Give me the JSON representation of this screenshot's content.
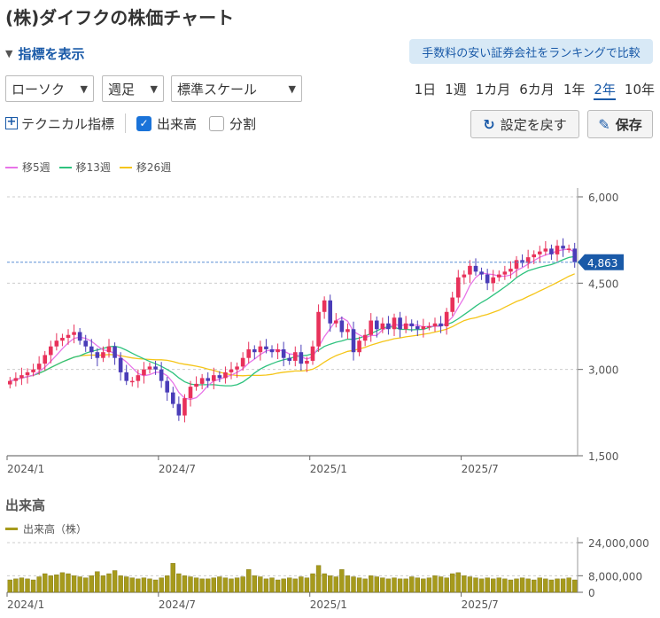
{
  "header": {
    "title": "(株)ダイフクの株価チャート"
  },
  "indicators_toggle": {
    "label": "指標を表示"
  },
  "ranking_button": {
    "label": "手数料の安い証券会社をランキングで比較"
  },
  "selects": {
    "chart_type": "ローソク",
    "interval": "週足",
    "scale": "標準スケール"
  },
  "periods": [
    {
      "label": "1日",
      "active": false
    },
    {
      "label": "1週",
      "active": false
    },
    {
      "label": "1カ月",
      "active": false
    },
    {
      "label": "6カ月",
      "active": false
    },
    {
      "label": "1年",
      "active": false
    },
    {
      "label": "2年",
      "active": true
    },
    {
      "label": "10年",
      "active": false
    }
  ],
  "options": {
    "technical_label": "テクニカル指標",
    "volume_label": "出来高",
    "volume_checked": true,
    "split_label": "分割",
    "split_checked": false
  },
  "buttons": {
    "reset_label": "設定を戻す",
    "save_label": "保存"
  },
  "legend": [
    {
      "name": "移5週",
      "color": "#e873e8"
    },
    {
      "name": "移13週",
      "color": "#2ec27e"
    },
    {
      "name": "移26週",
      "color": "#f5c518"
    }
  ],
  "colors": {
    "up": "#e8315a",
    "down": "#4a3db8",
    "volume": "#a69a1c",
    "current_tag": "#1a5aa8"
  },
  "volume_section": {
    "title": "出来高",
    "legend_label": "出来高（株）"
  },
  "chart_data": {
    "type": "candlestick",
    "current_price_label": "4,863",
    "current_price": 4863,
    "y_ticks": [
      {
        "v": 6000,
        "label": "6,000"
      },
      {
        "v": 4500,
        "label": "4,500"
      },
      {
        "v": 3000,
        "label": "3,000"
      },
      {
        "v": 1500,
        "label": "1,500"
      }
    ],
    "ylim": [
      1500,
      6000
    ],
    "x_ticks": [
      {
        "i": 0,
        "label": "2024/1"
      },
      {
        "i": 26,
        "label": "2024/7"
      },
      {
        "i": 52,
        "label": "2025/1"
      },
      {
        "i": 78,
        "label": "2025/7"
      }
    ],
    "close": [
      2800,
      2850,
      2900,
      2950,
      3000,
      3100,
      3250,
      3400,
      3500,
      3550,
      3600,
      3650,
      3500,
      3400,
      3300,
      3200,
      3300,
      3400,
      3200,
      2950,
      2800,
      2800,
      2900,
      3000,
      3050,
      3000,
      2800,
      2600,
      2400,
      2200,
      2500,
      2700,
      2750,
      2850,
      2800,
      2900,
      2850,
      2950,
      3000,
      3050,
      3200,
      3350,
      3300,
      3400,
      3350,
      3300,
      3350,
      3200,
      3150,
      3300,
      3100,
      3150,
      3400,
      4000,
      4200,
      3800,
      3850,
      3650,
      3700,
      3300,
      3500,
      3600,
      3850,
      3700,
      3800,
      3700,
      3900,
      3700,
      3800,
      3750,
      3700,
      3750,
      3750,
      3800,
      3750,
      4000,
      4250,
      4600,
      4650,
      4800,
      4700,
      4650,
      4500,
      4600,
      4650,
      4700,
      4750,
      4900,
      4850,
      4950,
      5000,
      5050,
      5100,
      5000,
      5150,
      5100,
      5100,
      4863
    ],
    "volume": [
      6000000,
      6500000,
      7000000,
      6500000,
      6000000,
      7500000,
      9000000,
      8000000,
      8500000,
      9500000,
      9000000,
      8000000,
      7500000,
      7000000,
      8000000,
      10000000,
      8000000,
      9000000,
      10500000,
      8000000,
      7500000,
      7000000,
      6500000,
      7000000,
      6500000,
      6000000,
      7000000,
      8000000,
      14000000,
      9000000,
      8000000,
      7500000,
      7000000,
      6500000,
      6500000,
      7000000,
      7500000,
      7000000,
      6500000,
      7000000,
      7500000,
      11000000,
      8000000,
      7500000,
      6500000,
      7000000,
      6000000,
      6500000,
      7000000,
      6500000,
      7500000,
      7000000,
      9000000,
      13000000,
      9000000,
      8000000,
      7500000,
      11000000,
      8000000,
      7500000,
      7000000,
      6500000,
      8000000,
      7500000,
      7000000,
      6500000,
      7000000,
      6500000,
      6500000,
      7500000,
      7000000,
      6500000,
      7000000,
      8000000,
      7500000,
      7000000,
      9000000,
      9500000,
      8000000,
      7500000,
      7000000,
      6500000,
      7000000,
      6500000,
      7000000,
      6500000,
      6000000,
      6500000,
      7000000,
      6500000,
      6000000,
      7000000,
      6500000,
      6000000,
      6500000,
      6500000,
      7000000,
      6000000
    ],
    "volume_ticks": [
      {
        "v": 24000000,
        "label": "24,000,000"
      },
      {
        "v": 8000000,
        "label": "8,000,000"
      },
      {
        "v": 0,
        "label": "0"
      }
    ],
    "volume_ylim": [
      0,
      24000000
    ]
  }
}
